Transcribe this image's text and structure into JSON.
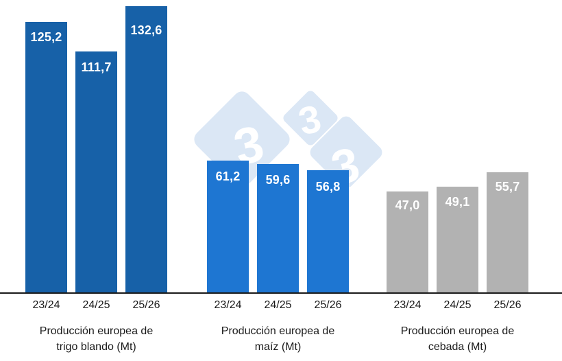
{
  "chart_data": {
    "type": "bar",
    "title": "",
    "categories": [
      "23/24",
      "24/25",
      "25/26"
    ],
    "groups": [
      {
        "name": "Producción europea de trigo blando (Mt)",
        "label_lines": [
          "Producción europea de",
          "trigo blando (Mt)"
        ],
        "color": "#1761A8",
        "values": [
          125.2,
          111.7,
          132.6
        ],
        "value_labels": [
          "125,2",
          "111,7",
          "132,6"
        ]
      },
      {
        "name": "Producción europea de maíz (Mt)",
        "label_lines": [
          "Producción europea de",
          "maíz (Mt)"
        ],
        "color": "#1E76D2",
        "values": [
          61.2,
          59.6,
          56.8
        ],
        "value_labels": [
          "61,2",
          "59,6",
          "56,8"
        ]
      },
      {
        "name": "Producción europea de cebada (Mt)",
        "label_lines": [
          "Producción europea de",
          "cebada (Mt)"
        ],
        "color": "#B2B2B2",
        "values": [
          47.0,
          49.1,
          55.7
        ],
        "value_labels": [
          "47,0",
          "49,1",
          "55,7"
        ]
      }
    ],
    "ylim": [
      0,
      135.6
    ],
    "grid": false,
    "legend": "none",
    "background": "#FFFFFF",
    "value_label_color": "#FFFFFF",
    "axis_label_color": "#1A1A1A",
    "axis_line_color": "#1A1A1A"
  },
  "watermark": {
    "name": "3tres3 logo",
    "digit": "3",
    "diamond_color": "#DBE7F5",
    "digit_color": "#FFFFFF"
  }
}
